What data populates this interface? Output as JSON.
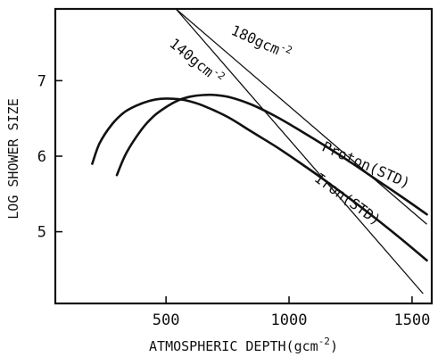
{
  "chart_data": {
    "type": "line",
    "xlabel": "ATMOSPHERIC DEPTH(gcm",
    "xlabel_sup": "-2",
    "xlabel_end": ")",
    "ylabel": "LOG SHOWER SIZE",
    "xlim": [
      50,
      1580
    ],
    "ylim": [
      4.05,
      7.95
    ],
    "xticks": [
      500,
      1000,
      1500
    ],
    "xtick_labels": [
      "500",
      "1000",
      "1500"
    ],
    "yticks": [
      5,
      6,
      7
    ],
    "ytick_labels": [
      "5",
      "6",
      "7"
    ],
    "grid": false,
    "series": [
      {
        "name": "Proton(STD)",
        "style": "curve",
        "x": [
          300,
          340,
          400,
          450,
          500,
          550,
          600,
          650,
          700,
          760,
          850,
          950,
          1050,
          1150,
          1250,
          1350,
          1450,
          1560
        ],
        "y": [
          5.75,
          6.05,
          6.35,
          6.53,
          6.65,
          6.74,
          6.79,
          6.81,
          6.81,
          6.78,
          6.68,
          6.52,
          6.33,
          6.13,
          5.92,
          5.7,
          5.48,
          5.23
        ]
      },
      {
        "name": "Iron(STD)",
        "style": "curve",
        "x": [
          200,
          230,
          280,
          330,
          380,
          430,
          480,
          530,
          580,
          650,
          750,
          850,
          950,
          1050,
          1150,
          1250,
          1350,
          1450,
          1560
        ],
        "y": [
          5.9,
          6.17,
          6.42,
          6.58,
          6.67,
          6.73,
          6.76,
          6.76,
          6.74,
          6.67,
          6.52,
          6.32,
          6.12,
          5.9,
          5.67,
          5.43,
          5.18,
          4.92,
          4.62
        ]
      },
      {
        "name": "180gcm-2",
        "style": "reference",
        "x": [
          540,
          1560
        ],
        "y": [
          7.95,
          5.1
        ]
      },
      {
        "name": "140gcm-2",
        "style": "reference",
        "x": [
          540,
          1545
        ],
        "y": [
          7.95,
          4.18
        ]
      }
    ],
    "annotations": [
      {
        "text": "180gcm",
        "sup": "-2",
        "x": 760,
        "y": 7.62,
        "rotate": 24
      },
      {
        "text": "140gcm",
        "sup": "-2",
        "x": 510,
        "y": 7.47,
        "rotate": 39
      },
      {
        "text": "Proton(STD)",
        "x": 1130,
        "y": 6.08,
        "rotate": 24
      },
      {
        "text": "Iron(STD)",
        "x": 1100,
        "y": 5.68,
        "rotate": 36
      }
    ]
  }
}
